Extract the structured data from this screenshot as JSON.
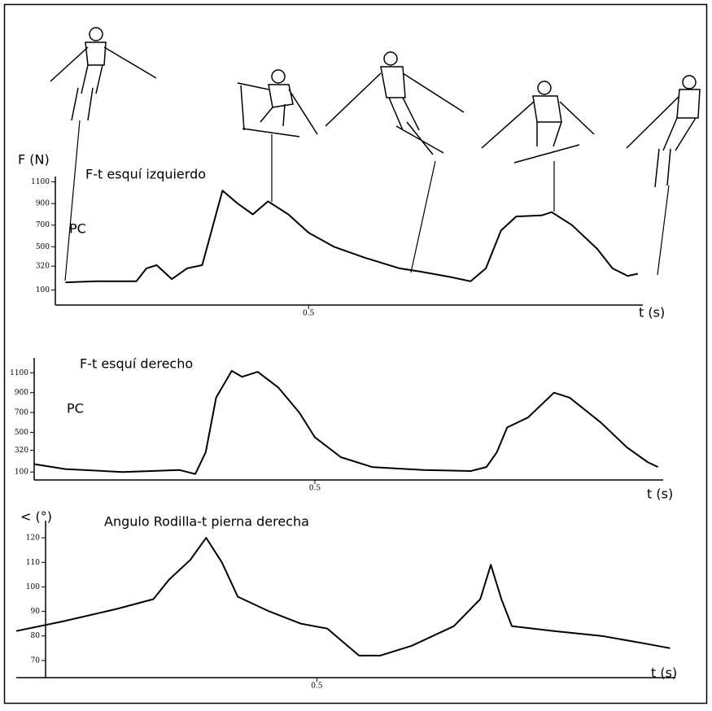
{
  "chart_data": [
    {
      "type": "line",
      "y_label": "F (N)",
      "title": "F-t esquí izquierdo",
      "annotation": "PC",
      "x_label": "t (s)",
      "x": [
        0.02,
        0.08,
        0.16,
        0.18,
        0.2,
        0.23,
        0.26,
        0.29,
        0.33,
        0.36,
        0.39,
        0.42,
        0.46,
        0.5,
        0.55,
        0.61,
        0.68,
        0.72,
        0.78,
        0.82,
        0.85,
        0.88,
        0.91,
        0.96,
        0.98,
        1.02,
        1.07,
        1.1,
        1.13,
        1.15
      ],
      "series": [
        {
          "color": "#000000",
          "values": [
            170,
            180,
            180,
            300,
            330,
            200,
            300,
            330,
            1020,
            900,
            800,
            920,
            800,
            630,
            500,
            400,
            300,
            270,
            220,
            180,
            300,
            650,
            780,
            790,
            820,
            700,
            480,
            300,
            230,
            250
          ]
        }
      ],
      "xlim": [
        0,
        1.16
      ],
      "xticks": [
        0.5
      ],
      "ylim": [
        -40,
        1150
      ],
      "yticks": [
        100,
        320,
        500,
        700,
        900,
        1100
      ]
    },
    {
      "type": "line",
      "title": "F-t esquí derecho",
      "annotation": "PC",
      "x_label": "t (s)",
      "x": [
        -0.04,
        0.02,
        0.13,
        0.24,
        0.27,
        0.29,
        0.31,
        0.34,
        0.36,
        0.39,
        0.43,
        0.47,
        0.5,
        0.55,
        0.61,
        0.71,
        0.8,
        0.83,
        0.85,
        0.87,
        0.91,
        0.96,
        0.99,
        1.05,
        1.1,
        1.14,
        1.16
      ],
      "series": [
        {
          "color": "#000000",
          "values": [
            180,
            130,
            100,
            120,
            80,
            300,
            850,
            1120,
            1060,
            1110,
            950,
            700,
            450,
            250,
            150,
            120,
            110,
            150,
            300,
            550,
            650,
            900,
            850,
            600,
            350,
            200,
            150
          ]
        }
      ],
      "xlim": [
        -0.04,
        1.17
      ],
      "xticks": [
        0.5
      ],
      "ylim": [
        20,
        1250
      ],
      "yticks": [
        100,
        320,
        500,
        700,
        900,
        1100
      ]
    },
    {
      "type": "line",
      "y_label": "< (°)",
      "title": "Angulo Rodilla-t pierna derecha",
      "x_label": "t (s)",
      "x": [
        -0.07,
        0.02,
        0.12,
        0.19,
        0.22,
        0.26,
        0.29,
        0.32,
        0.35,
        0.41,
        0.47,
        0.52,
        0.58,
        0.62,
        0.68,
        0.76,
        0.81,
        0.83,
        0.85,
        0.87,
        0.95,
        1.04,
        1.12,
        1.17
      ],
      "series": [
        {
          "color": "#000000",
          "values": [
            82,
            86,
            91,
            95,
            103,
            111,
            120,
            110,
            96,
            90,
            85,
            83,
            72,
            72,
            76,
            84,
            95,
            109,
            95,
            84,
            82,
            80,
            77,
            75
          ]
        }
      ],
      "xlim": [
        -0.07,
        1.18
      ],
      "xticks": [
        0.5
      ],
      "ylim": [
        63,
        127
      ],
      "yticks": [
        70,
        80,
        90,
        100,
        110,
        120
      ]
    }
  ]
}
